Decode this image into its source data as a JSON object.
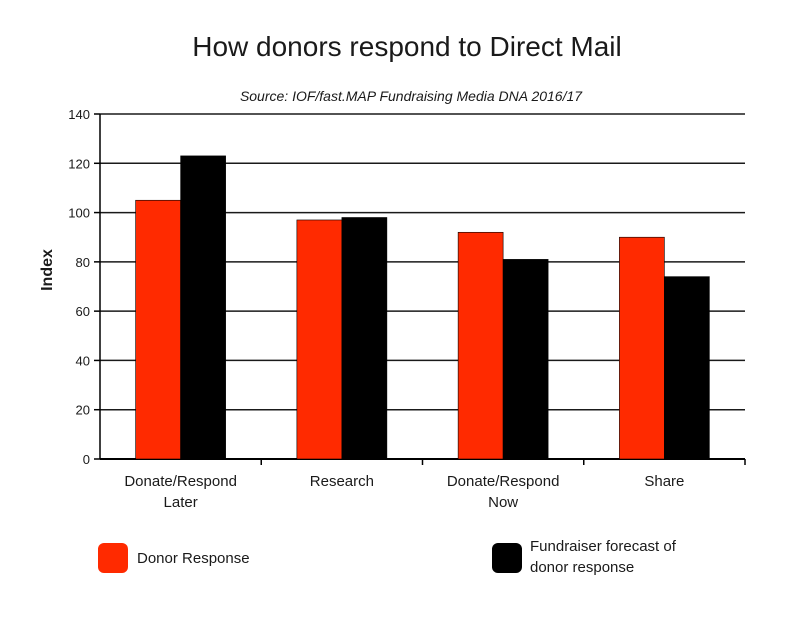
{
  "chart_data": {
    "type": "bar",
    "title": "How donors respond to Direct Mail",
    "subtitle": "Source: IOF/fast.MAP Fundraising Media DNA 2016/17",
    "xlabel": "",
    "ylabel": "Index",
    "ylim": [
      0,
      140
    ],
    "yticks": [
      0,
      20,
      40,
      60,
      80,
      100,
      120,
      140
    ],
    "categories": [
      [
        "Donate/Respond",
        "Later"
      ],
      [
        "Research"
      ],
      [
        "Donate/Respond",
        "Now"
      ],
      [
        "Share"
      ]
    ],
    "series": [
      {
        "name": "Donor Response",
        "color": "#ff2a00",
        "values": [
          105,
          97,
          92,
          90
        ]
      },
      {
        "name": "Fundraiser forecast of donor response",
        "legend_lines": [
          "Fundraiser forecast of",
          "donor response"
        ],
        "color": "#000000",
        "values": [
          123,
          98,
          81,
          74
        ]
      }
    ],
    "grid": "horizontal",
    "legend_position": "bottom"
  }
}
